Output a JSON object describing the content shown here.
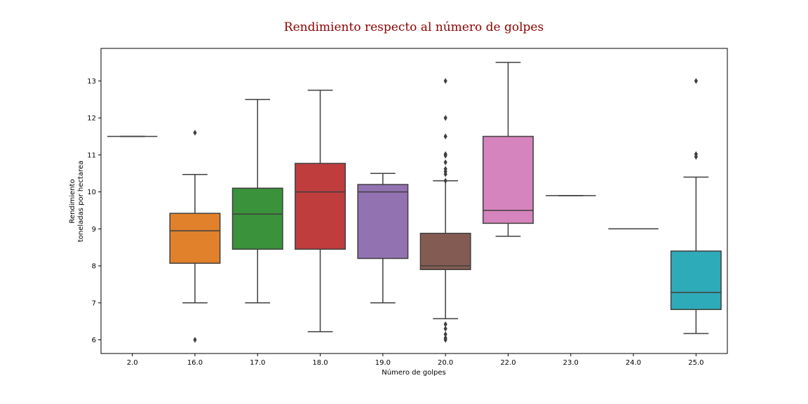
{
  "chart_data": {
    "type": "boxplot",
    "title": "Rendimiento respecto al número de golpes",
    "xlabel": "Número de golpes",
    "ylabel": [
      "Rendimiento",
      "toneladas por hectarea"
    ],
    "ylim": [
      5.63,
      13.88
    ],
    "yticks": [
      6,
      7,
      8,
      9,
      10,
      11,
      12,
      13
    ],
    "grid": false,
    "categories": [
      "2.0",
      "16.0",
      "17.0",
      "18.0",
      "19.0",
      "20.0",
      "22.0",
      "23.0",
      "24.0",
      "25.0"
    ],
    "boxes": [
      {
        "category": "2.0",
        "color": "#1f77b4",
        "whislo": 11.5,
        "q1": 11.5,
        "med": 11.5,
        "q3": 11.5,
        "whishi": 11.5,
        "fliers": []
      },
      {
        "category": "16.0",
        "color": "#e1812c",
        "whislo": 7.0,
        "q1": 8.07,
        "med": 8.95,
        "q3": 9.42,
        "whishi": 10.47,
        "fliers": [
          6.0,
          11.6
        ]
      },
      {
        "category": "17.0",
        "color": "#3a923a",
        "whislo": 7.0,
        "q1": 8.45,
        "med": 9.4,
        "q3": 10.1,
        "whishi": 12.5,
        "fliers": []
      },
      {
        "category": "18.0",
        "color": "#c03d3e",
        "whislo": 6.22,
        "q1": 8.45,
        "med": 10.0,
        "q3": 10.77,
        "whishi": 12.75,
        "fliers": []
      },
      {
        "category": "19.0",
        "color": "#9372b2",
        "whislo": 7.0,
        "q1": 8.2,
        "med": 10.0,
        "q3": 10.2,
        "whishi": 10.5,
        "fliers": []
      },
      {
        "category": "20.0",
        "color": "#845b53",
        "whislo": 6.57,
        "q1": 7.9,
        "med": 8.0,
        "q3": 8.88,
        "whishi": 10.3,
        "fliers": [
          6.0,
          6.05,
          6.15,
          6.3,
          6.42,
          10.3,
          10.48,
          10.55,
          10.62,
          10.8,
          10.98,
          11.02,
          11.5,
          12.0,
          13.0
        ]
      },
      {
        "category": "22.0",
        "color": "#d684bd",
        "whislo": 8.8,
        "q1": 9.15,
        "med": 9.5,
        "q3": 11.5,
        "whishi": 13.5,
        "fliers": []
      },
      {
        "category": "23.0",
        "color": "#7f7f7f",
        "whislo": 9.9,
        "q1": 9.9,
        "med": 9.9,
        "q3": 9.9,
        "whishi": 9.9,
        "fliers": []
      },
      {
        "category": "24.0",
        "color": "#a9aa35",
        "whislo": 9.0,
        "q1": 9.0,
        "med": 9.0,
        "q3": 9.0,
        "whishi": 9.0,
        "fliers": []
      },
      {
        "category": "25.0",
        "color": "#2eabb8",
        "whislo": 6.17,
        "q1": 6.82,
        "med": 7.28,
        "q3": 8.4,
        "whishi": 10.4,
        "fliers": [
          10.95,
          11.02,
          13.0
        ]
      }
    ]
  }
}
